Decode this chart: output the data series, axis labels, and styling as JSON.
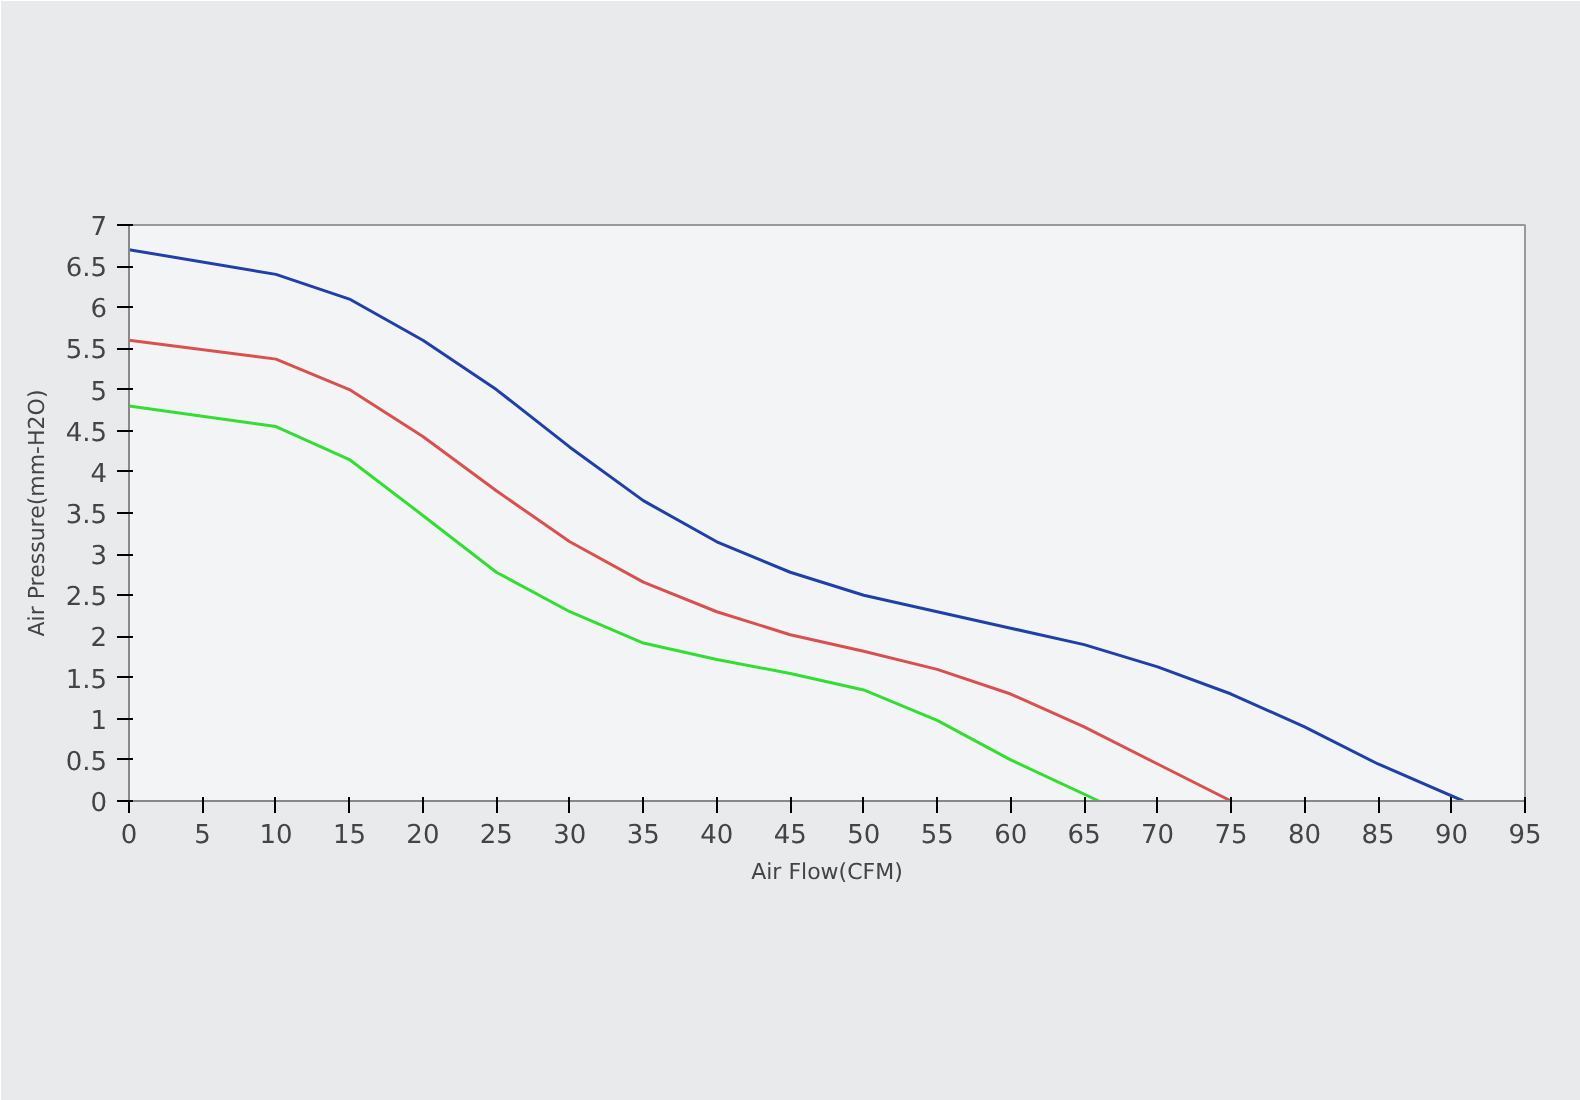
{
  "chart_data": {
    "type": "line",
    "xlabel": "Air Flow(CFM)",
    "ylabel": "Air Pressure(mm-H2O)",
    "xlim": [
      0,
      95
    ],
    "xticks": [
      0,
      5,
      10,
      15,
      20,
      25,
      30,
      35,
      40,
      45,
      50,
      55,
      60,
      65,
      70,
      75,
      80,
      85,
      90,
      95
    ],
    "ylim": [
      0,
      7
    ],
    "yticks": [
      0,
      0.5,
      1,
      1.5,
      2,
      2.5,
      3,
      3.5,
      4,
      4.5,
      5,
      5.5,
      6,
      6.5,
      7
    ],
    "grid": false,
    "marker": "none",
    "line_style": "solid",
    "series": [
      {
        "color": "#2040a8",
        "x": [
          0,
          10,
          15,
          20,
          25,
          30,
          35,
          40,
          45,
          50,
          55,
          60,
          65,
          70,
          75,
          80,
          85,
          90.8
        ],
        "values": [
          6.7,
          6.4,
          6.1,
          5.6,
          5.0,
          4.3,
          3.65,
          3.15,
          2.78,
          2.5,
          2.3,
          2.1,
          1.9,
          1.63,
          1.3,
          0.9,
          0.45,
          0
        ]
      },
      {
        "color": "#d85050",
        "x": [
          0,
          10,
          15,
          20,
          25,
          30,
          35,
          40,
          45,
          50,
          55,
          60,
          65,
          70,
          75
        ],
        "values": [
          5.6,
          5.37,
          5.0,
          4.43,
          3.77,
          3.15,
          2.66,
          2.3,
          2.02,
          1.82,
          1.6,
          1.3,
          0.9,
          0.45,
          0
        ]
      },
      {
        "color": "#33dd33",
        "x": [
          0,
          10,
          15,
          20,
          25,
          30,
          35,
          40,
          45,
          50,
          55,
          60,
          66
        ],
        "values": [
          4.8,
          4.55,
          4.15,
          3.47,
          2.78,
          2.3,
          1.92,
          1.72,
          1.55,
          1.35,
          0.98,
          0.5,
          0
        ]
      }
    ]
  }
}
